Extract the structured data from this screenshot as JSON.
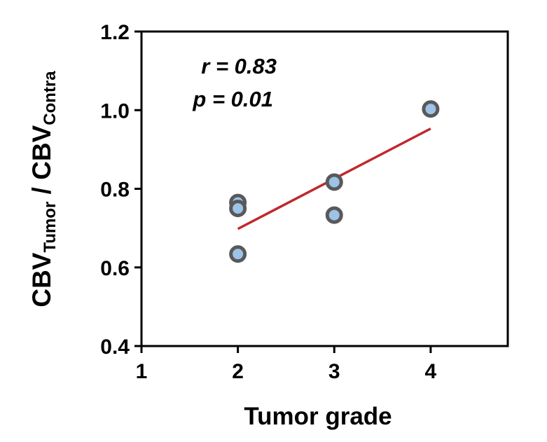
{
  "chart_data": {
    "type": "scatter",
    "xlabel": "Tumor grade",
    "ylabel": {
      "parts": [
        {
          "text": "CBV",
          "sub": false
        },
        {
          "text": "Tumor",
          "sub": true
        },
        {
          "text": " / CBV",
          "sub": false
        },
        {
          "text": "Contra",
          "sub": true
        }
      ]
    },
    "xlim": [
      1,
      4.8
    ],
    "ylim": [
      0.4,
      1.2
    ],
    "xticks": [
      1,
      2,
      3,
      4
    ],
    "xtick_labels": [
      "1",
      "2",
      "3",
      "4"
    ],
    "yticks": [
      0.4,
      0.6,
      0.8,
      1.0,
      1.2
    ],
    "ytick_labels": [
      "0.4",
      "0.6",
      "0.8",
      "1.0",
      "1.2"
    ],
    "points": [
      {
        "x": 2,
        "y": 0.765
      },
      {
        "x": 2,
        "y": 0.75
      },
      {
        "x": 2,
        "y": 0.634
      },
      {
        "x": 3,
        "y": 0.817
      },
      {
        "x": 3,
        "y": 0.733
      },
      {
        "x": 4,
        "y": 1.003
      }
    ],
    "fit_line": {
      "x": [
        2,
        4
      ],
      "y": [
        0.698,
        0.953
      ]
    },
    "annotations": [
      "r = 0.83",
      "p = 0.01"
    ],
    "grid": false,
    "colors": {
      "point_fill": "#9dc3e6",
      "point_edge": "#595959",
      "fit_line": "#c0282d"
    }
  }
}
